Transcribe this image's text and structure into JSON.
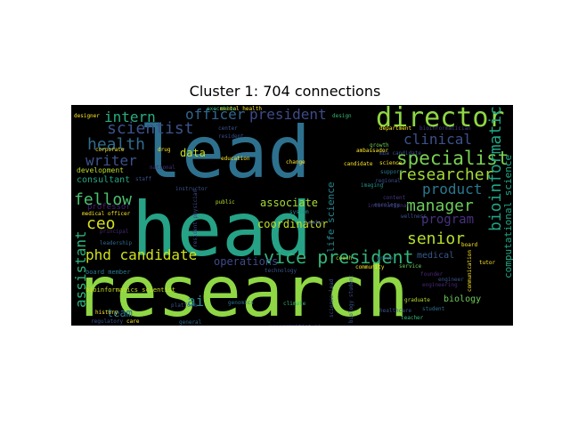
{
  "title": "Cluster 1: 704 connections",
  "wordcloud": {
    "background": "#000000",
    "words": [
      {
        "text": "research",
        "color": "#8fd744",
        "vertical": false
      },
      {
        "text": "head",
        "color": "#26a286",
        "vertical": false
      },
      {
        "text": "lead",
        "color": "#2d718e",
        "vertical": false
      },
      {
        "text": "director",
        "color": "#8fd744",
        "vertical": false
      },
      {
        "text": "vice president",
        "color": "#31b57b",
        "vertical": false
      },
      {
        "text": "senior",
        "color": "#b5de2b",
        "vertical": false
      },
      {
        "text": "health",
        "color": "#2f6c8e",
        "vertical": false
      },
      {
        "text": "scientist",
        "color": "#3b528b",
        "vertical": false
      },
      {
        "text": "writer",
        "color": "#3b528b",
        "vertical": false
      },
      {
        "text": "specialist",
        "color": "#7ad151",
        "vertical": false
      },
      {
        "text": "researcher",
        "color": "#a2da37",
        "vertical": false
      },
      {
        "text": "clinical",
        "color": "#3b528b",
        "vertical": false
      },
      {
        "text": "product",
        "color": "#2a788e",
        "vertical": false
      },
      {
        "text": "manager",
        "color": "#6ccd5a",
        "vertical": false
      },
      {
        "text": "program",
        "color": "#46337e",
        "vertical": false
      },
      {
        "text": "phd candidate",
        "color": "#d0e11c",
        "vertical": false
      },
      {
        "text": "president",
        "color": "#3e4a89",
        "vertical": false
      },
      {
        "text": "officer",
        "color": "#32658e",
        "vertical": false
      },
      {
        "text": "intern",
        "color": "#27ad81",
        "vertical": false
      },
      {
        "text": "fellow",
        "color": "#4ac16d",
        "vertical": false
      },
      {
        "text": "ceo",
        "color": "#d8e219",
        "vertical": false
      },
      {
        "text": "bioinformatics",
        "color": "#20a486",
        "vertical": true
      },
      {
        "text": "assistant",
        "color": "#2db27d",
        "vertical": true
      },
      {
        "text": "ai",
        "color": "#23898e",
        "vertical": false
      },
      {
        "text": "operations",
        "color": "#3e4a89",
        "vertical": false
      },
      {
        "text": "associate",
        "color": "#a8db34",
        "vertical": false
      },
      {
        "text": "coordinator",
        "color": "#c2df23",
        "vertical": false
      },
      {
        "text": "data",
        "color": "#c5e021",
        "vertical": false
      },
      {
        "text": "team",
        "color": "#2c728e",
        "vertical": false
      },
      {
        "text": "consultant",
        "color": "#22a785",
        "vertical": false
      },
      {
        "text": "professor",
        "color": "#481f70",
        "vertical": false
      },
      {
        "text": "medical",
        "color": "#38598c",
        "vertical": false
      },
      {
        "text": "development",
        "color": "#b8de29",
        "vertical": false
      },
      {
        "text": "life science",
        "color": "#24868e",
        "vertical": true
      },
      {
        "text": "computational science",
        "color": "#22a785",
        "vertical": true
      },
      {
        "text": "biology",
        "color": "#6ece58",
        "vertical": false
      },
      {
        "text": "bioinformatics scientist",
        "color": "#c8e020",
        "vertical": false
      },
      {
        "text": "board member",
        "color": "#2a788e",
        "vertical": false
      },
      {
        "text": "medical officer",
        "color": "#fde725",
        "vertical": false
      },
      {
        "text": "leader",
        "color": "#3b528b",
        "vertical": false
      },
      {
        "text": "education",
        "color": "#fde725",
        "vertical": false
      },
      {
        "text": "design",
        "color": "#35b779",
        "vertical": false
      },
      {
        "text": "center",
        "color": "#3b528b",
        "vertical": false
      },
      {
        "text": "public",
        "color": "#b5de2b",
        "vertical": false
      },
      {
        "text": "tutor",
        "color": "#fde725",
        "vertical": false
      },
      {
        "text": "coach",
        "color": "#b5de2b",
        "vertical": false
      },
      {
        "text": "student",
        "color": "#2c728e",
        "vertical": false
      },
      {
        "text": "service",
        "color": "#6ccd5a",
        "vertical": false
      },
      {
        "text": "climate",
        "color": "#35b779",
        "vertical": false
      },
      {
        "text": "content",
        "color": "#443983",
        "vertical": false
      },
      {
        "text": "department",
        "color": "#fde725",
        "vertical": false
      },
      {
        "text": "designer",
        "color": "#fde725",
        "vertical": false
      },
      {
        "text": "resident",
        "color": "#3e4a89",
        "vertical": false
      },
      {
        "text": "founder",
        "color": "#482878",
        "vertical": false
      },
      {
        "text": "group",
        "color": "#31688e",
        "vertical": false
      },
      {
        "text": "technology",
        "color": "#3b528b",
        "vertical": false
      },
      {
        "text": "growth",
        "color": "#6ccd5a",
        "vertical": false
      },
      {
        "text": "mba candidate",
        "color": "#3b528b",
        "vertical": false
      },
      {
        "text": "bioinformatician",
        "color": "#443983",
        "vertical": false
      },
      {
        "text": "genomics",
        "color": "#2c728e",
        "vertical": false
      },
      {
        "text": "regional",
        "color": "#3e4a89",
        "vertical": false
      },
      {
        "text": "resident physician",
        "color": "#3e4a89",
        "vertical": true
      },
      {
        "text": "principal",
        "color": "#482878",
        "vertical": false
      },
      {
        "text": "system",
        "color": "#21918c",
        "vertical": false
      },
      {
        "text": "programming",
        "color": "#46337e",
        "vertical": false
      },
      {
        "text": "communication",
        "color": "#fde725",
        "vertical": true
      },
      {
        "text": "engineer",
        "color": "#3b528b",
        "vertical": false
      },
      {
        "text": "support",
        "color": "#2a788e",
        "vertical": false
      },
      {
        "text": "science",
        "color": "#fde725",
        "vertical": false
      },
      {
        "text": "community",
        "color": "#fde725",
        "vertical": false
      },
      {
        "text": "mental health",
        "color": "#fde725",
        "vertical": false
      },
      {
        "text": "change",
        "color": "#fde725",
        "vertical": false
      },
      {
        "text": "national",
        "color": "#46337e",
        "vertical": false
      },
      {
        "text": "international",
        "color": "#46337e",
        "vertical": false
      },
      {
        "text": "graduate",
        "color": "#b8de29",
        "vertical": false
      },
      {
        "text": "engineering",
        "color": "#482878",
        "vertical": false
      },
      {
        "text": "ambassador",
        "color": "#fde725",
        "vertical": false
      },
      {
        "text": "healthcare",
        "color": "#3b528b",
        "vertical": false
      },
      {
        "text": "teacher",
        "color": "#35b779",
        "vertical": false
      },
      {
        "text": "corporate",
        "color": "#fde725",
        "vertical": false
      },
      {
        "text": "staff",
        "color": "#3b528b",
        "vertical": false
      },
      {
        "text": "history",
        "color": "#fde725",
        "vertical": false
      },
      {
        "text": "general",
        "color": "#31688e",
        "vertical": false
      },
      {
        "text": "regulatory",
        "color": "#3b528b",
        "vertical": false
      },
      {
        "text": "care",
        "color": "#fde725",
        "vertical": false
      },
      {
        "text": "executive",
        "color": "#35b779",
        "vertical": false
      },
      {
        "text": "drug",
        "color": "#fde725",
        "vertical": false
      },
      {
        "text": "platform",
        "color": "#3b528b",
        "vertical": false
      },
      {
        "text": "instructor",
        "color": "#3b528b",
        "vertical": false
      },
      {
        "text": "scientist ii",
        "color": "#46337e",
        "vertical": false
      },
      {
        "text": "board",
        "color": "#fde725",
        "vertical": false
      },
      {
        "text": "wellness",
        "color": "#3b528b",
        "vertical": false
      },
      {
        "text": "leadership",
        "color": "#31688e",
        "vertical": false
      },
      {
        "text": "candidate",
        "color": "#fde725",
        "vertical": false
      },
      {
        "text": "oncology",
        "color": "#3b528b",
        "vertical": false
      },
      {
        "text": "imaging",
        "color": "#21918c",
        "vertical": false
      },
      {
        "text": "science lead",
        "color": "#3b528b",
        "vertical": true
      },
      {
        "text": "biology student",
        "color": "#3b528b",
        "vertical": true
      }
    ]
  }
}
